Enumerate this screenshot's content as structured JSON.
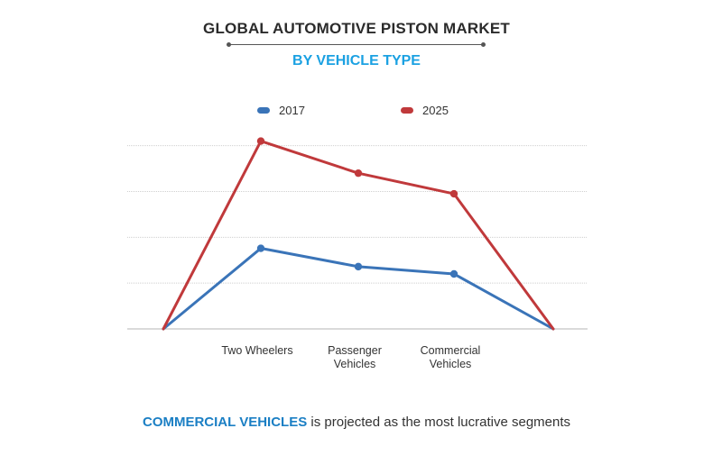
{
  "title": "GLOBAL AUTOMOTIVE PISTON MARKET",
  "subtitle": "BY VEHICLE TYPE",
  "footnote": {
    "highlight": "COMMERCIAL VEHICLES",
    "text": " is projected as the most lucrative segments"
  },
  "colors": {
    "series_2017": "#3a74b8",
    "series_2025": "#c0393b",
    "highlight": "#1b7fc4",
    "subtitle": "#1ba1e2"
  },
  "chart_data": {
    "type": "line",
    "categories": [
      "",
      "Two Wheelers",
      [
        "Passenger",
        "Vehicles"
      ],
      [
        "Commercial",
        "Vehicles"
      ],
      ""
    ],
    "x": [
      0,
      1,
      2,
      3,
      4
    ],
    "series": [
      {
        "name": "2017",
        "values": [
          0,
          1.76,
          1.36,
          1.2,
          0
        ]
      },
      {
        "name": "2025",
        "values": [
          0,
          4.1,
          3.4,
          2.95,
          0
        ]
      }
    ],
    "ylim": [
      0,
      4.8
    ],
    "yticks": [
      0,
      1,
      2,
      3,
      4
    ],
    "grid": true,
    "legend": "top-center",
    "ytick_labels_shown": false
  }
}
